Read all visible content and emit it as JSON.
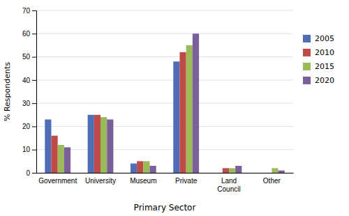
{
  "chart_data": {
    "type": "bar",
    "categories": [
      "Government",
      "University",
      "Museum",
      "Private",
      "Land\nCouncil",
      "Other"
    ],
    "series": [
      {
        "name": "2005",
        "color": "#4F6EB5",
        "values": [
          23,
          25,
          4,
          48,
          0,
          0
        ]
      },
      {
        "name": "2010",
        "color": "#BE4B48",
        "values": [
          16,
          25,
          5,
          52,
          2,
          0
        ]
      },
      {
        "name": "2015",
        "color": "#9BBB59",
        "values": [
          12,
          24,
          5,
          55,
          2,
          2
        ]
      },
      {
        "name": "2020",
        "color": "#7A5F9A",
        "values": [
          11,
          23,
          3,
          60,
          3,
          1
        ]
      }
    ],
    "xlabel": "Primary Sector",
    "ylabel": "% Respondents",
    "ylim": [
      0,
      70
    ],
    "yticks": [
      0,
      10,
      20,
      30,
      40,
      50,
      60,
      70
    ],
    "grid": true,
    "legend": "right"
  }
}
